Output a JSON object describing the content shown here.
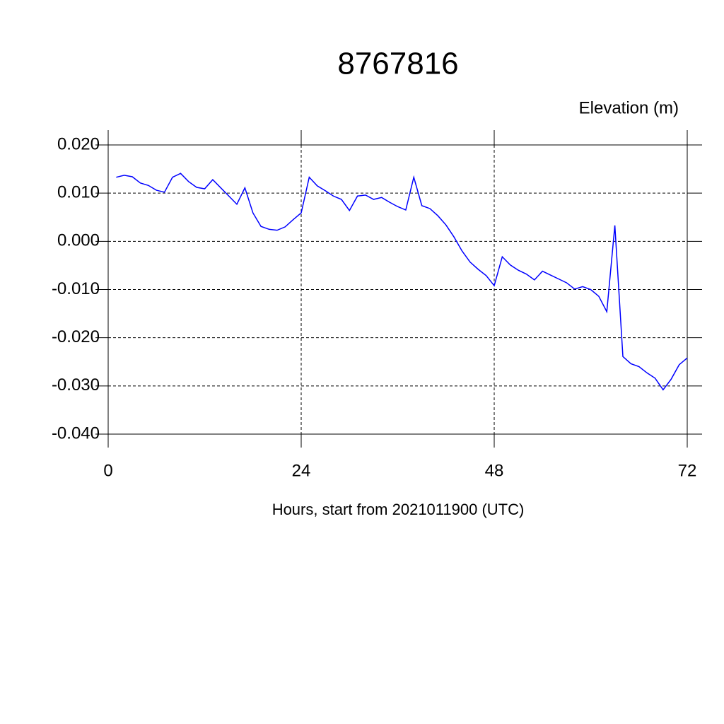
{
  "chart_data": {
    "type": "line",
    "title": "8767816",
    "subtitle": "Elevation (m)",
    "x_label": "Hours, start from 2021011900 (UTC)",
    "x": [
      1,
      2,
      3,
      4,
      5,
      6,
      7,
      8,
      9,
      10,
      11,
      12,
      13,
      14,
      15,
      16,
      17,
      18,
      19,
      20,
      21,
      22,
      23,
      24,
      25,
      26,
      27,
      28,
      29,
      30,
      31,
      32,
      33,
      34,
      35,
      36,
      37,
      38,
      39,
      40,
      41,
      42,
      43,
      44,
      45,
      46,
      47,
      48,
      49,
      50,
      51,
      52,
      53,
      54,
      55,
      56,
      57,
      58,
      59,
      60,
      61,
      62,
      63,
      64,
      65,
      66,
      67,
      68,
      69,
      70,
      71,
      72
    ],
    "series": [
      {
        "name": "Elevation",
        "color": "#0000ff",
        "values": [
          0.0133,
          0.0137,
          0.0134,
          0.0121,
          0.0116,
          0.0106,
          0.0102,
          0.0133,
          0.0141,
          0.0124,
          0.0112,
          0.0109,
          0.0128,
          0.0111,
          0.0094,
          0.0077,
          0.0111,
          0.0059,
          0.0031,
          0.0025,
          0.0023,
          0.003,
          0.0045,
          0.0059,
          0.0133,
          0.0115,
          0.0105,
          0.0094,
          0.0087,
          0.0064,
          0.0094,
          0.0096,
          0.0087,
          0.0091,
          0.0081,
          0.0072,
          0.0065,
          0.0133,
          0.0074,
          0.0068,
          0.0053,
          0.0034,
          0.0009,
          -0.002,
          -0.0043,
          -0.0058,
          -0.0071,
          -0.0092,
          -0.0032,
          -0.0049,
          -0.006,
          -0.0068,
          -0.008,
          -0.0062,
          -0.007,
          -0.0078,
          -0.0086,
          -0.0099,
          -0.0094,
          -0.01,
          -0.0114,
          -0.0146,
          0.0033,
          -0.0239,
          -0.0254,
          -0.026,
          -0.0273,
          -0.0284,
          -0.0308,
          -0.0286,
          -0.0256,
          -0.0242
        ]
      }
    ],
    "xlim": [
      0,
      72
    ],
    "xticks": [
      0,
      24,
      48,
      72
    ],
    "ylim": [
      -0.04,
      0.02
    ],
    "yticks": [
      {
        "value": -0.04,
        "label": "-0.040"
      },
      {
        "value": -0.03,
        "label": "-0.030"
      },
      {
        "value": -0.02,
        "label": "-0.020"
      },
      {
        "value": -0.01,
        "label": "-0.010"
      },
      {
        "value": 0,
        "label": "0.000"
      },
      {
        "value": 0.01,
        "label": "0.010"
      },
      {
        "value": 0.02,
        "label": "0.020"
      }
    ],
    "grid": true
  }
}
